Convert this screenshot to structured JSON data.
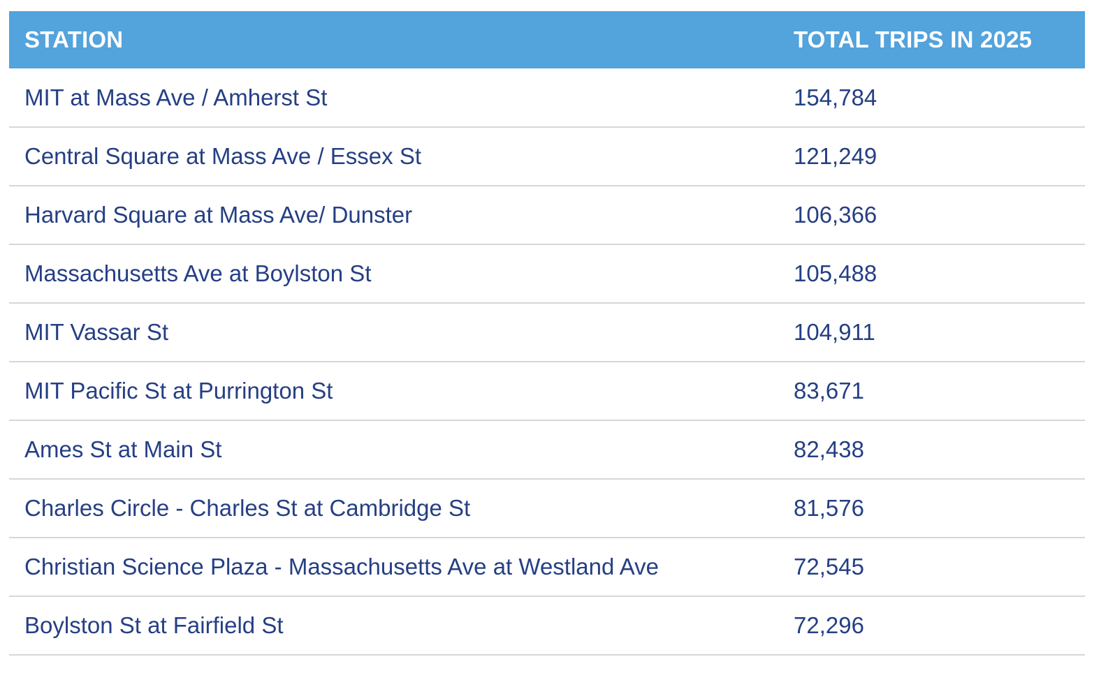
{
  "table": {
    "headers": {
      "station": "STATION",
      "trips": "TOTAL TRIPS IN 2025"
    },
    "rows": [
      {
        "station": "MIT at Mass Ave / Amherst St",
        "trips": "154,784"
      },
      {
        "station": "Central Square at Mass Ave / Essex St",
        "trips": "121,249"
      },
      {
        "station": "Harvard Square at Mass Ave/ Dunster",
        "trips": "106,366"
      },
      {
        "station": "Massachusetts Ave at Boylston St",
        "trips": "105,488"
      },
      {
        "station": "MIT Vassar St",
        "trips": "104,911"
      },
      {
        "station": "MIT Pacific St at Purrington St",
        "trips": "83,671"
      },
      {
        "station": "Ames St at Main St",
        "trips": "82,438"
      },
      {
        "station": "Charles Circle - Charles St at Cambridge St",
        "trips": "81,576"
      },
      {
        "station": "Christian Science Plaza - Massachusetts Ave at Westland Ave",
        "trips": "72,545"
      },
      {
        "station": "Boylston St at Fairfield St",
        "trips": "72,296"
      }
    ]
  },
  "colors": {
    "header_bg": "#53a3dc",
    "header_text": "#ffffff",
    "cell_text": "#253f84",
    "row_divider": "#d6d6d6"
  }
}
